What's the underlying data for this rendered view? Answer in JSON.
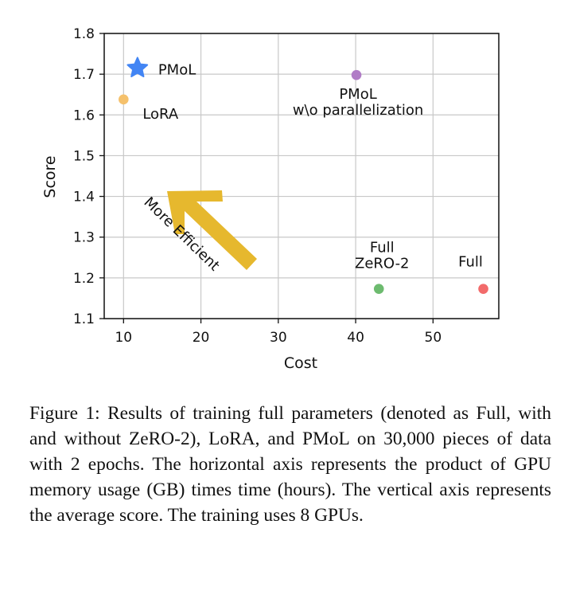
{
  "chart_data": {
    "type": "scatter",
    "xlabel": "Cost",
    "ylabel": "Score",
    "xlim": [
      7.5,
      58.5
    ],
    "ylim": [
      1.1,
      1.8
    ],
    "xticks": [
      10,
      20,
      30,
      40,
      50
    ],
    "yticks": [
      1.1,
      1.2,
      1.3,
      1.4,
      1.5,
      1.6,
      1.7,
      1.8
    ],
    "xtick_labels": [
      "10",
      "20",
      "30",
      "40",
      "50"
    ],
    "ytick_labels": [
      "1.1",
      "1.2",
      "1.3",
      "1.4",
      "1.5",
      "1.6",
      "1.7",
      "1.8"
    ],
    "grid": true,
    "points": [
      {
        "name": "PMoL",
        "label": "PMoL",
        "x": 11.8,
        "y": 1.715,
        "marker": "star",
        "color": "#4285f4"
      },
      {
        "name": "LoRA",
        "label": "LoRA",
        "x": 10.0,
        "y": 1.638,
        "marker": "circle",
        "color": "#f5c16c"
      },
      {
        "name": "PMoL w\\o parallelization",
        "label": "PMoL\nw\\o parallelization",
        "x": 40.1,
        "y": 1.698,
        "marker": "circle",
        "color": "#b07cc6"
      },
      {
        "name": "Full ZeRO-2",
        "label": "Full\nZeRO-2",
        "x": 43.0,
        "y": 1.173,
        "marker": "circle",
        "color": "#6dbb6f"
      },
      {
        "name": "Full",
        "label": "Full",
        "x": 56.5,
        "y": 1.173,
        "marker": "circle",
        "color": "#f26b6b"
      }
    ],
    "annotation": {
      "text": "More Efficient",
      "arrow_color": "#e6b82e",
      "direction": "up-left"
    }
  },
  "caption": "Figure 1: Results of training full parameters (denoted as Full, with and without ZeRO-2), LoRA, and PMoL on 30,000 pieces of data with 2 epochs. The horizontal axis represents the product of GPU memory usage (GB) times time (hours).  The vertical axis represents the average score. The training uses 8 GPUs."
}
